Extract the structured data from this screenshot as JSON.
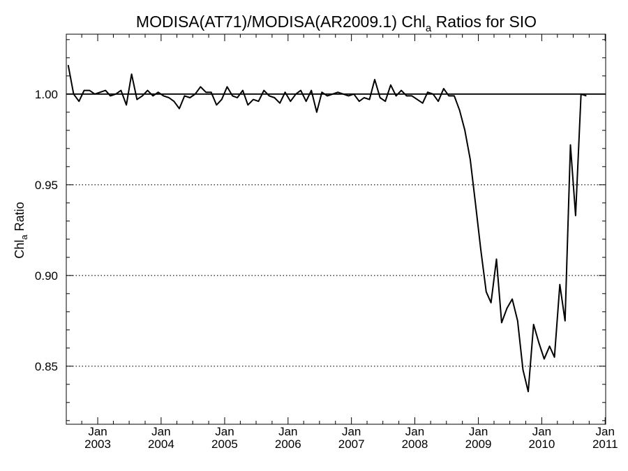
{
  "chart_data": {
    "type": "line",
    "title": {
      "prefix": "MODISA(AT71)/MODISA(AR2009.1)  Chl",
      "subscript": "a",
      "suffix": " Ratios for SIO"
    },
    "ylabel": {
      "prefix": "Chl",
      "subscript": "a",
      "suffix": " Ratio"
    },
    "xlabel": "",
    "ylim": [
      0.818,
      1.033
    ],
    "xlim": [
      "2002-07-04",
      "2011-01-04"
    ],
    "y_ticks": [
      {
        "value": 0.85,
        "label": "0.85"
      },
      {
        "value": 0.9,
        "label": "0.90"
      },
      {
        "value": 0.95,
        "label": "0.95"
      },
      {
        "value": 1.0,
        "label": "1.00"
      }
    ],
    "x_ticks": [
      {
        "date": "2003-01-01",
        "month": "Jan",
        "year": "2003"
      },
      {
        "date": "2004-01-01",
        "month": "Jan",
        "year": "2004"
      },
      {
        "date": "2005-01-01",
        "month": "Jan",
        "year": "2005"
      },
      {
        "date": "2006-01-01",
        "month": "Jan",
        "year": "2006"
      },
      {
        "date": "2007-01-01",
        "month": "Jan",
        "year": "2007"
      },
      {
        "date": "2008-01-01",
        "month": "Jan",
        "year": "2008"
      },
      {
        "date": "2009-01-01",
        "month": "Jan",
        "year": "2009"
      },
      {
        "date": "2010-01-01",
        "month": "Jan",
        "year": "2010"
      },
      {
        "date": "2011-01-01",
        "month": "Jan",
        "year": "2011"
      }
    ],
    "dotted_reference_lines": [
      0.85,
      0.9,
      0.95
    ],
    "solid_reference_line": 1.0,
    "grid": false,
    "series": [
      {
        "start": "2002-07",
        "interval": "monthly",
        "values": [
          1.016,
          1.0,
          0.996,
          1.002,
          1.002,
          1.0,
          1.001,
          1.002,
          0.999,
          1.0,
          1.002,
          0.994,
          1.011,
          0.997,
          0.999,
          1.002,
          0.999,
          1.001,
          0.999,
          0.998,
          0.996,
          0.992,
          0.999,
          0.998,
          1.0,
          1.004,
          1.001,
          1.001,
          0.994,
          0.997,
          1.004,
          0.999,
          0.998,
          1.002,
          0.994,
          0.997,
          0.996,
          1.002,
          0.999,
          0.998,
          0.995,
          1.001,
          0.996,
          1.0,
          1.002,
          0.996,
          1.002,
          0.99,
          1.001,
          0.999,
          1.0,
          1.001,
          1.0,
          0.999,
          1.0,
          0.996,
          0.998,
          0.997,
          1.008,
          0.998,
          0.996,
          1.005,
          0.999,
          1.002,
          0.999,
          0.999,
          0.997,
          0.995,
          1.001,
          1.0,
          0.996,
          1.003,
          0.999,
          0.999,
          0.991,
          0.98,
          0.964,
          0.94,
          0.914,
          0.891,
          0.885,
          0.909,
          0.874,
          0.882,
          0.887,
          0.875,
          0.848,
          0.836,
          0.873,
          0.863,
          0.854,
          0.861,
          0.855,
          0.895,
          0.875,
          0.972,
          0.933,
          1.0,
          0.999
        ]
      }
    ]
  }
}
